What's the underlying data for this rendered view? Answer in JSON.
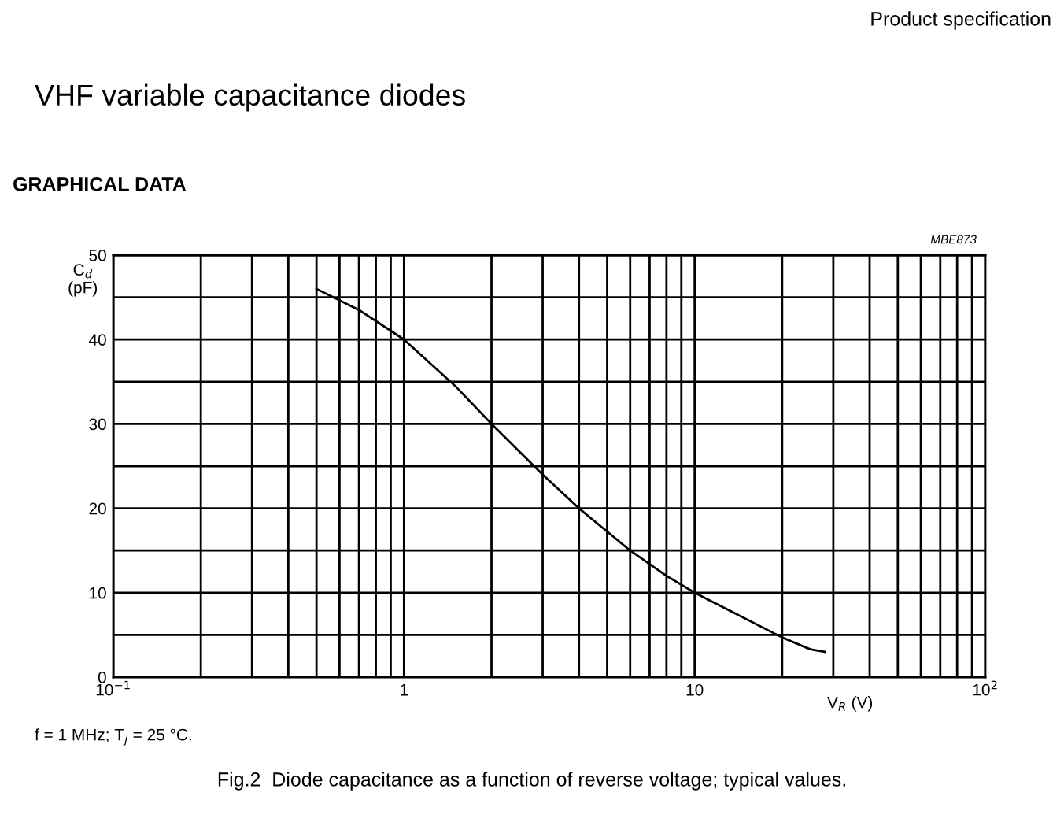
{
  "chart_data": {
    "type": "line",
    "title": "VHF variable capacitance diodes",
    "subtitle": "GRAPHICAL DATA",
    "xlabel": "V$_{R}$ (V)",
    "ylabel": "C$_{d}$\n(pF)",
    "x": [
      0.5,
      0.7,
      1,
      1.5,
      2,
      3,
      4,
      6,
      8,
      10,
      15,
      20,
      25,
      28
    ],
    "series": [
      {
        "color": "#000000",
        "values": [
          46,
          43.5,
          40,
          34.5,
          30,
          24,
          20,
          15,
          12,
          10,
          6.9,
          4.7,
          3.3,
          3
        ]
      }
    ],
    "log": "x",
    "xlim": [
      0.1,
      100
    ],
    "ylim": [
      0,
      50
    ],
    "xticks": [
      {
        "value": 0.1,
        "label": "10$^{−1}$"
      },
      {
        "value": 0.2,
        "label": null
      },
      {
        "value": 0.3,
        "label": null
      },
      {
        "value": 0.4,
        "label": null
      },
      {
        "value": 0.5,
        "label": null
      },
      {
        "value": 0.6,
        "label": null
      },
      {
        "value": 0.7,
        "label": null
      },
      {
        "value": 0.8,
        "label": null
      },
      {
        "value": 0.9,
        "label": null
      },
      1,
      {
        "value": 2,
        "label": null
      },
      {
        "value": 3,
        "label": null
      },
      {
        "value": 4,
        "label": null
      },
      {
        "value": 5,
        "label": null
      },
      {
        "value": 6,
        "label": null
      },
      {
        "value": 7,
        "label": null
      },
      {
        "value": 8,
        "label": null
      },
      {
        "value": 9,
        "label": null
      },
      10,
      {
        "value": 20,
        "label": null
      },
      {
        "value": 30,
        "label": null
      },
      {
        "value": 40,
        "label": null
      },
      {
        "value": 50,
        "label": null
      },
      {
        "value": 60,
        "label": null
      },
      {
        "value": 70,
        "label": null
      },
      {
        "value": 80,
        "label": null
      },
      {
        "value": 90,
        "label": null
      },
      {
        "value": 100,
        "label": "10$^{2}$"
      }
    ],
    "yticks": [
      0,
      {
        "value": 5,
        "label": null
      },
      10,
      {
        "value": 15,
        "label": null
      },
      20,
      {
        "value": 25,
        "label": null
      },
      30,
      {
        "value": 35,
        "label": null
      },
      40,
      {
        "value": 45,
        "label": null
      },
      50
    ],
    "grid": true,
    "legend": false,
    "line_style": "solid",
    "marker": "none",
    "annotations": [
      "Product specification",
      "MBE873",
      "f = 1 MHz; T$_{j}$ = 25 °C.",
      "Fig.2  Diode capacitance as a function of reverse voltage; typical values."
    ]
  }
}
